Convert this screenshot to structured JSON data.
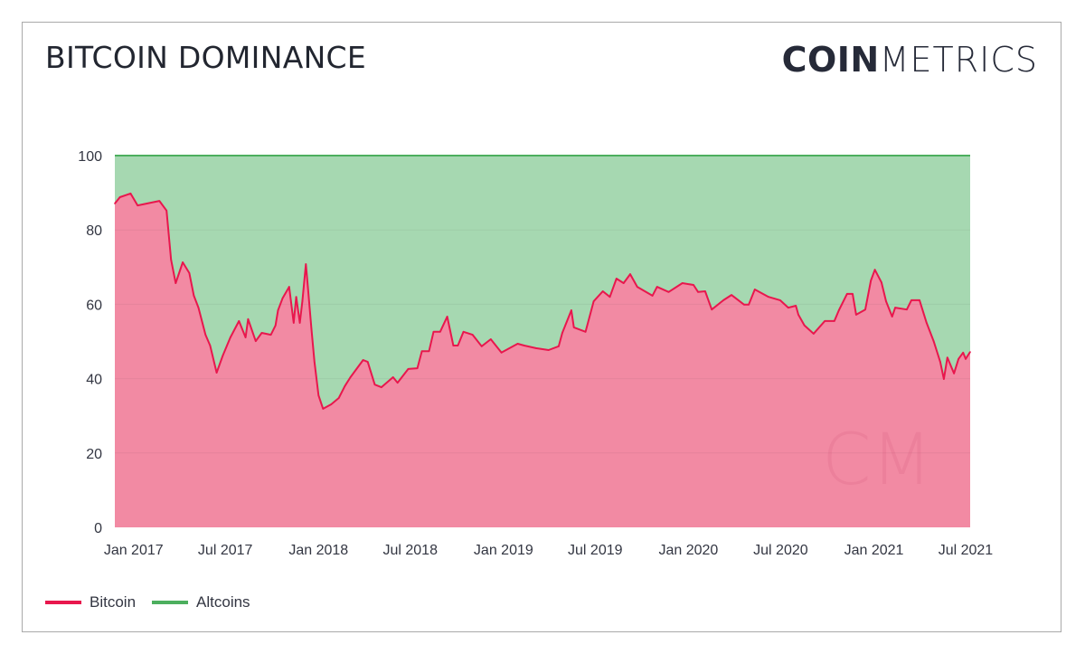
{
  "header": {
    "title": "BITCOIN DOMINANCE",
    "logo_bold": "COIN",
    "logo_light": "METRICS",
    "watermark": "CM"
  },
  "colors": {
    "bitcoin_line": "#e8174d",
    "bitcoin_fill": "#f28aa3",
    "altcoins_line": "#4caf5e",
    "altcoins_fill": "#a6d8b1",
    "text": "#333642"
  },
  "chart_data": {
    "type": "area",
    "stacked": true,
    "title": "BITCOIN DOMINANCE",
    "xlabel": "",
    "ylabel": "",
    "ylim": [
      0,
      100
    ],
    "yticks": [
      0,
      20,
      40,
      60,
      80,
      100
    ],
    "xrange": [
      "2016-11-25",
      "2021-07-10"
    ],
    "xticks": [
      {
        "date": "2017-01-01",
        "label": "Jan 2017"
      },
      {
        "date": "2017-07-01",
        "label": "Jul 2017"
      },
      {
        "date": "2018-01-01",
        "label": "Jan 2018"
      },
      {
        "date": "2018-07-01",
        "label": "Jul 2018"
      },
      {
        "date": "2019-01-01",
        "label": "Jan 2019"
      },
      {
        "date": "2019-07-01",
        "label": "Jul 2019"
      },
      {
        "date": "2020-01-01",
        "label": "Jan 2020"
      },
      {
        "date": "2020-07-01",
        "label": "Jul 2020"
      },
      {
        "date": "2021-01-01",
        "label": "Jan 2021"
      },
      {
        "date": "2021-07-01",
        "label": "Jul 2021"
      }
    ],
    "grid": "horizontal",
    "legend": "bottom-left",
    "series": [
      {
        "name": "Bitcoin",
        "points": [
          [
            "2016-11-25",
            87.1
          ],
          [
            "2016-12-05",
            88.8
          ],
          [
            "2016-12-26",
            89.8
          ],
          [
            "2017-01-09",
            86.6
          ],
          [
            "2017-02-21",
            87.8
          ],
          [
            "2017-03-07",
            85.2
          ],
          [
            "2017-03-16",
            72.0
          ],
          [
            "2017-03-25",
            65.7
          ],
          [
            "2017-04-08",
            71.3
          ],
          [
            "2017-04-21",
            68.4
          ],
          [
            "2017-04-30",
            62.3
          ],
          [
            "2017-05-09",
            59.1
          ],
          [
            "2017-05-23",
            51.8
          ],
          [
            "2017-06-01",
            48.9
          ],
          [
            "2017-06-14",
            41.6
          ],
          [
            "2017-06-26",
            46.2
          ],
          [
            "2017-07-11",
            51.1
          ],
          [
            "2017-07-28",
            55.5
          ],
          [
            "2017-08-10",
            51.1
          ],
          [
            "2017-08-15",
            56.0
          ],
          [
            "2017-08-30",
            50.1
          ],
          [
            "2017-09-11",
            52.3
          ],
          [
            "2017-09-29",
            51.8
          ],
          [
            "2017-10-08",
            54.3
          ],
          [
            "2017-10-13",
            58.4
          ],
          [
            "2017-10-22",
            61.6
          ],
          [
            "2017-11-04",
            64.7
          ],
          [
            "2017-11-13",
            55.0
          ],
          [
            "2017-11-18",
            62.0
          ],
          [
            "2017-11-25",
            55.0
          ],
          [
            "2017-11-30",
            60.8
          ],
          [
            "2017-12-07",
            70.8
          ],
          [
            "2017-12-11",
            64.7
          ],
          [
            "2017-12-18",
            53.5
          ],
          [
            "2017-12-24",
            44.5
          ],
          [
            "2018-01-01",
            35.5
          ],
          [
            "2018-01-10",
            31.9
          ],
          [
            "2018-01-26",
            33.1
          ],
          [
            "2018-02-10",
            34.8
          ],
          [
            "2018-02-22",
            38.0
          ],
          [
            "2018-03-05",
            40.4
          ],
          [
            "2018-03-30",
            45.0
          ],
          [
            "2018-04-08",
            44.5
          ],
          [
            "2018-04-22",
            38.4
          ],
          [
            "2018-05-05",
            37.7
          ],
          [
            "2018-05-28",
            40.4
          ],
          [
            "2018-06-06",
            38.9
          ],
          [
            "2018-06-27",
            42.6
          ],
          [
            "2018-07-15",
            42.8
          ],
          [
            "2018-07-24",
            47.4
          ],
          [
            "2018-08-07",
            47.4
          ],
          [
            "2018-08-16",
            52.6
          ],
          [
            "2018-08-29",
            52.6
          ],
          [
            "2018-09-12",
            56.7
          ],
          [
            "2018-09-24",
            48.9
          ],
          [
            "2018-10-03",
            48.9
          ],
          [
            "2018-10-14",
            52.6
          ],
          [
            "2018-11-01",
            51.8
          ],
          [
            "2018-11-19",
            48.7
          ],
          [
            "2018-12-07",
            50.6
          ],
          [
            "2018-12-28",
            47.0
          ],
          [
            "2019-01-29",
            49.4
          ],
          [
            "2019-02-11",
            48.9
          ],
          [
            "2019-03-06",
            48.2
          ],
          [
            "2019-03-31",
            47.7
          ],
          [
            "2019-04-20",
            48.7
          ],
          [
            "2019-04-27",
            52.3
          ],
          [
            "2019-05-15",
            58.4
          ],
          [
            "2019-05-20",
            53.8
          ],
          [
            "2019-06-12",
            52.6
          ],
          [
            "2019-06-28",
            60.8
          ],
          [
            "2019-07-16",
            63.5
          ],
          [
            "2019-07-30",
            62.0
          ],
          [
            "2019-08-12",
            66.9
          ],
          [
            "2019-08-26",
            65.7
          ],
          [
            "2019-09-08",
            68.1
          ],
          [
            "2019-09-22",
            64.7
          ],
          [
            "2019-10-22",
            62.3
          ],
          [
            "2019-10-31",
            64.7
          ],
          [
            "2019-11-23",
            63.3
          ],
          [
            "2019-12-20",
            65.7
          ],
          [
            "2020-01-11",
            65.2
          ],
          [
            "2020-01-20",
            63.3
          ],
          [
            "2020-02-03",
            63.5
          ],
          [
            "2020-02-16",
            58.6
          ],
          [
            "2020-03-10",
            61.1
          ],
          [
            "2020-03-26",
            62.5
          ],
          [
            "2020-04-20",
            59.9
          ],
          [
            "2020-04-29",
            59.9
          ],
          [
            "2020-05-11",
            64.0
          ],
          [
            "2020-06-07",
            62.0
          ],
          [
            "2020-06-30",
            61.1
          ],
          [
            "2020-07-16",
            59.1
          ],
          [
            "2020-07-31",
            59.6
          ],
          [
            "2020-08-05",
            57.2
          ],
          [
            "2020-08-17",
            54.3
          ],
          [
            "2020-09-04",
            52.1
          ],
          [
            "2020-09-26",
            55.5
          ],
          [
            "2020-10-15",
            55.5
          ],
          [
            "2020-10-24",
            58.4
          ],
          [
            "2020-11-09",
            62.8
          ],
          [
            "2020-11-20",
            62.8
          ],
          [
            "2020-11-27",
            57.2
          ],
          [
            "2020-12-15",
            58.6
          ],
          [
            "2020-12-26",
            66.4
          ],
          [
            "2021-01-03",
            69.3
          ],
          [
            "2021-01-16",
            65.9
          ],
          [
            "2021-01-25",
            60.8
          ],
          [
            "2021-02-06",
            56.7
          ],
          [
            "2021-02-12",
            59.1
          ],
          [
            "2021-03-07",
            58.6
          ],
          [
            "2021-03-16",
            61.1
          ],
          [
            "2021-04-01",
            61.1
          ],
          [
            "2021-04-15",
            55.0
          ],
          [
            "2021-04-29",
            50.1
          ],
          [
            "2021-05-12",
            44.5
          ],
          [
            "2021-05-19",
            39.9
          ],
          [
            "2021-05-26",
            45.7
          ],
          [
            "2021-06-08",
            41.4
          ],
          [
            "2021-06-17",
            45.3
          ],
          [
            "2021-06-26",
            47.0
          ],
          [
            "2021-07-01",
            45.3
          ],
          [
            "2021-07-10",
            47.2
          ]
        ]
      },
      {
        "name": "Altcoins",
        "note_values": "remainder to 100"
      }
    ]
  }
}
